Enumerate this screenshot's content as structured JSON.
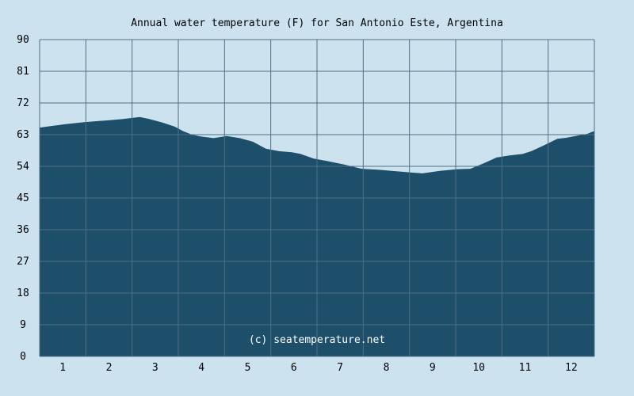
{
  "chart_data": {
    "type": "area",
    "title": "Annual water temperature (F) for San Antonio Este, Argentina",
    "credit": "(c) seatemperature.net",
    "categories": [
      "1",
      "2",
      "3",
      "4",
      "5",
      "6",
      "7",
      "8",
      "9",
      "10",
      "11",
      "12"
    ],
    "ylim": [
      0,
      90
    ],
    "yticks": [
      0,
      9,
      18,
      27,
      36,
      45,
      54,
      63,
      72,
      81,
      90
    ],
    "grid": true,
    "colors": {
      "area": "#1d4e6a",
      "background": "#cce3ef",
      "grid": "#4f6f86"
    },
    "series": [
      {
        "x": [
          0,
          0.3,
          0.6,
          1.0,
          1.5,
          1.9,
          2.3,
          2.5,
          2.8,
          3.1,
          3.3,
          3.5,
          3.7,
          4.0,
          4.3,
          4.6,
          4.9,
          5.2,
          5.5,
          5.8,
          6.0,
          6.3,
          6.6,
          7.0,
          7.4,
          7.8,
          8.2,
          8.5,
          8.8,
          9.2,
          9.6,
          9.9,
          10.2,
          10.5,
          10.8,
          11.1,
          11.3,
          11.6,
          11.9,
          12.1,
          12.4,
          12.5,
          12.6,
          12.7,
          12.75
        ],
        "values": [
          65,
          65.5,
          66,
          66.5,
          67,
          67.4,
          68,
          67.5,
          66.5,
          65.3,
          64,
          63,
          62.5,
          62,
          62.6,
          62,
          61,
          59,
          58.3,
          58,
          57.5,
          56.2,
          55.5,
          54.5,
          53.3,
          53,
          52.6,
          52.3,
          52,
          52.7,
          53.2,
          53.3,
          54.8,
          56.5,
          57.1,
          57.5,
          58.3,
          60,
          61.8,
          62.1,
          62.8,
          63,
          63.3,
          63.8,
          64
        ]
      }
    ]
  }
}
